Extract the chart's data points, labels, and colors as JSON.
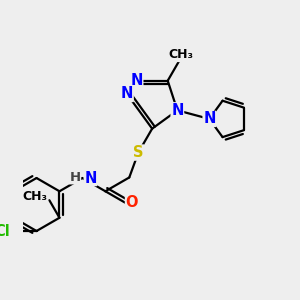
{
  "bg_color": "#eeeeee",
  "atom_colors": {
    "N": "#0000ff",
    "O": "#ff2200",
    "S": "#ccbb00",
    "Cl": "#22bb00",
    "C": "#000000",
    "H": "#444444"
  },
  "line_color": "#000000",
  "line_width": 1.6,
  "font_size": 10.5
}
